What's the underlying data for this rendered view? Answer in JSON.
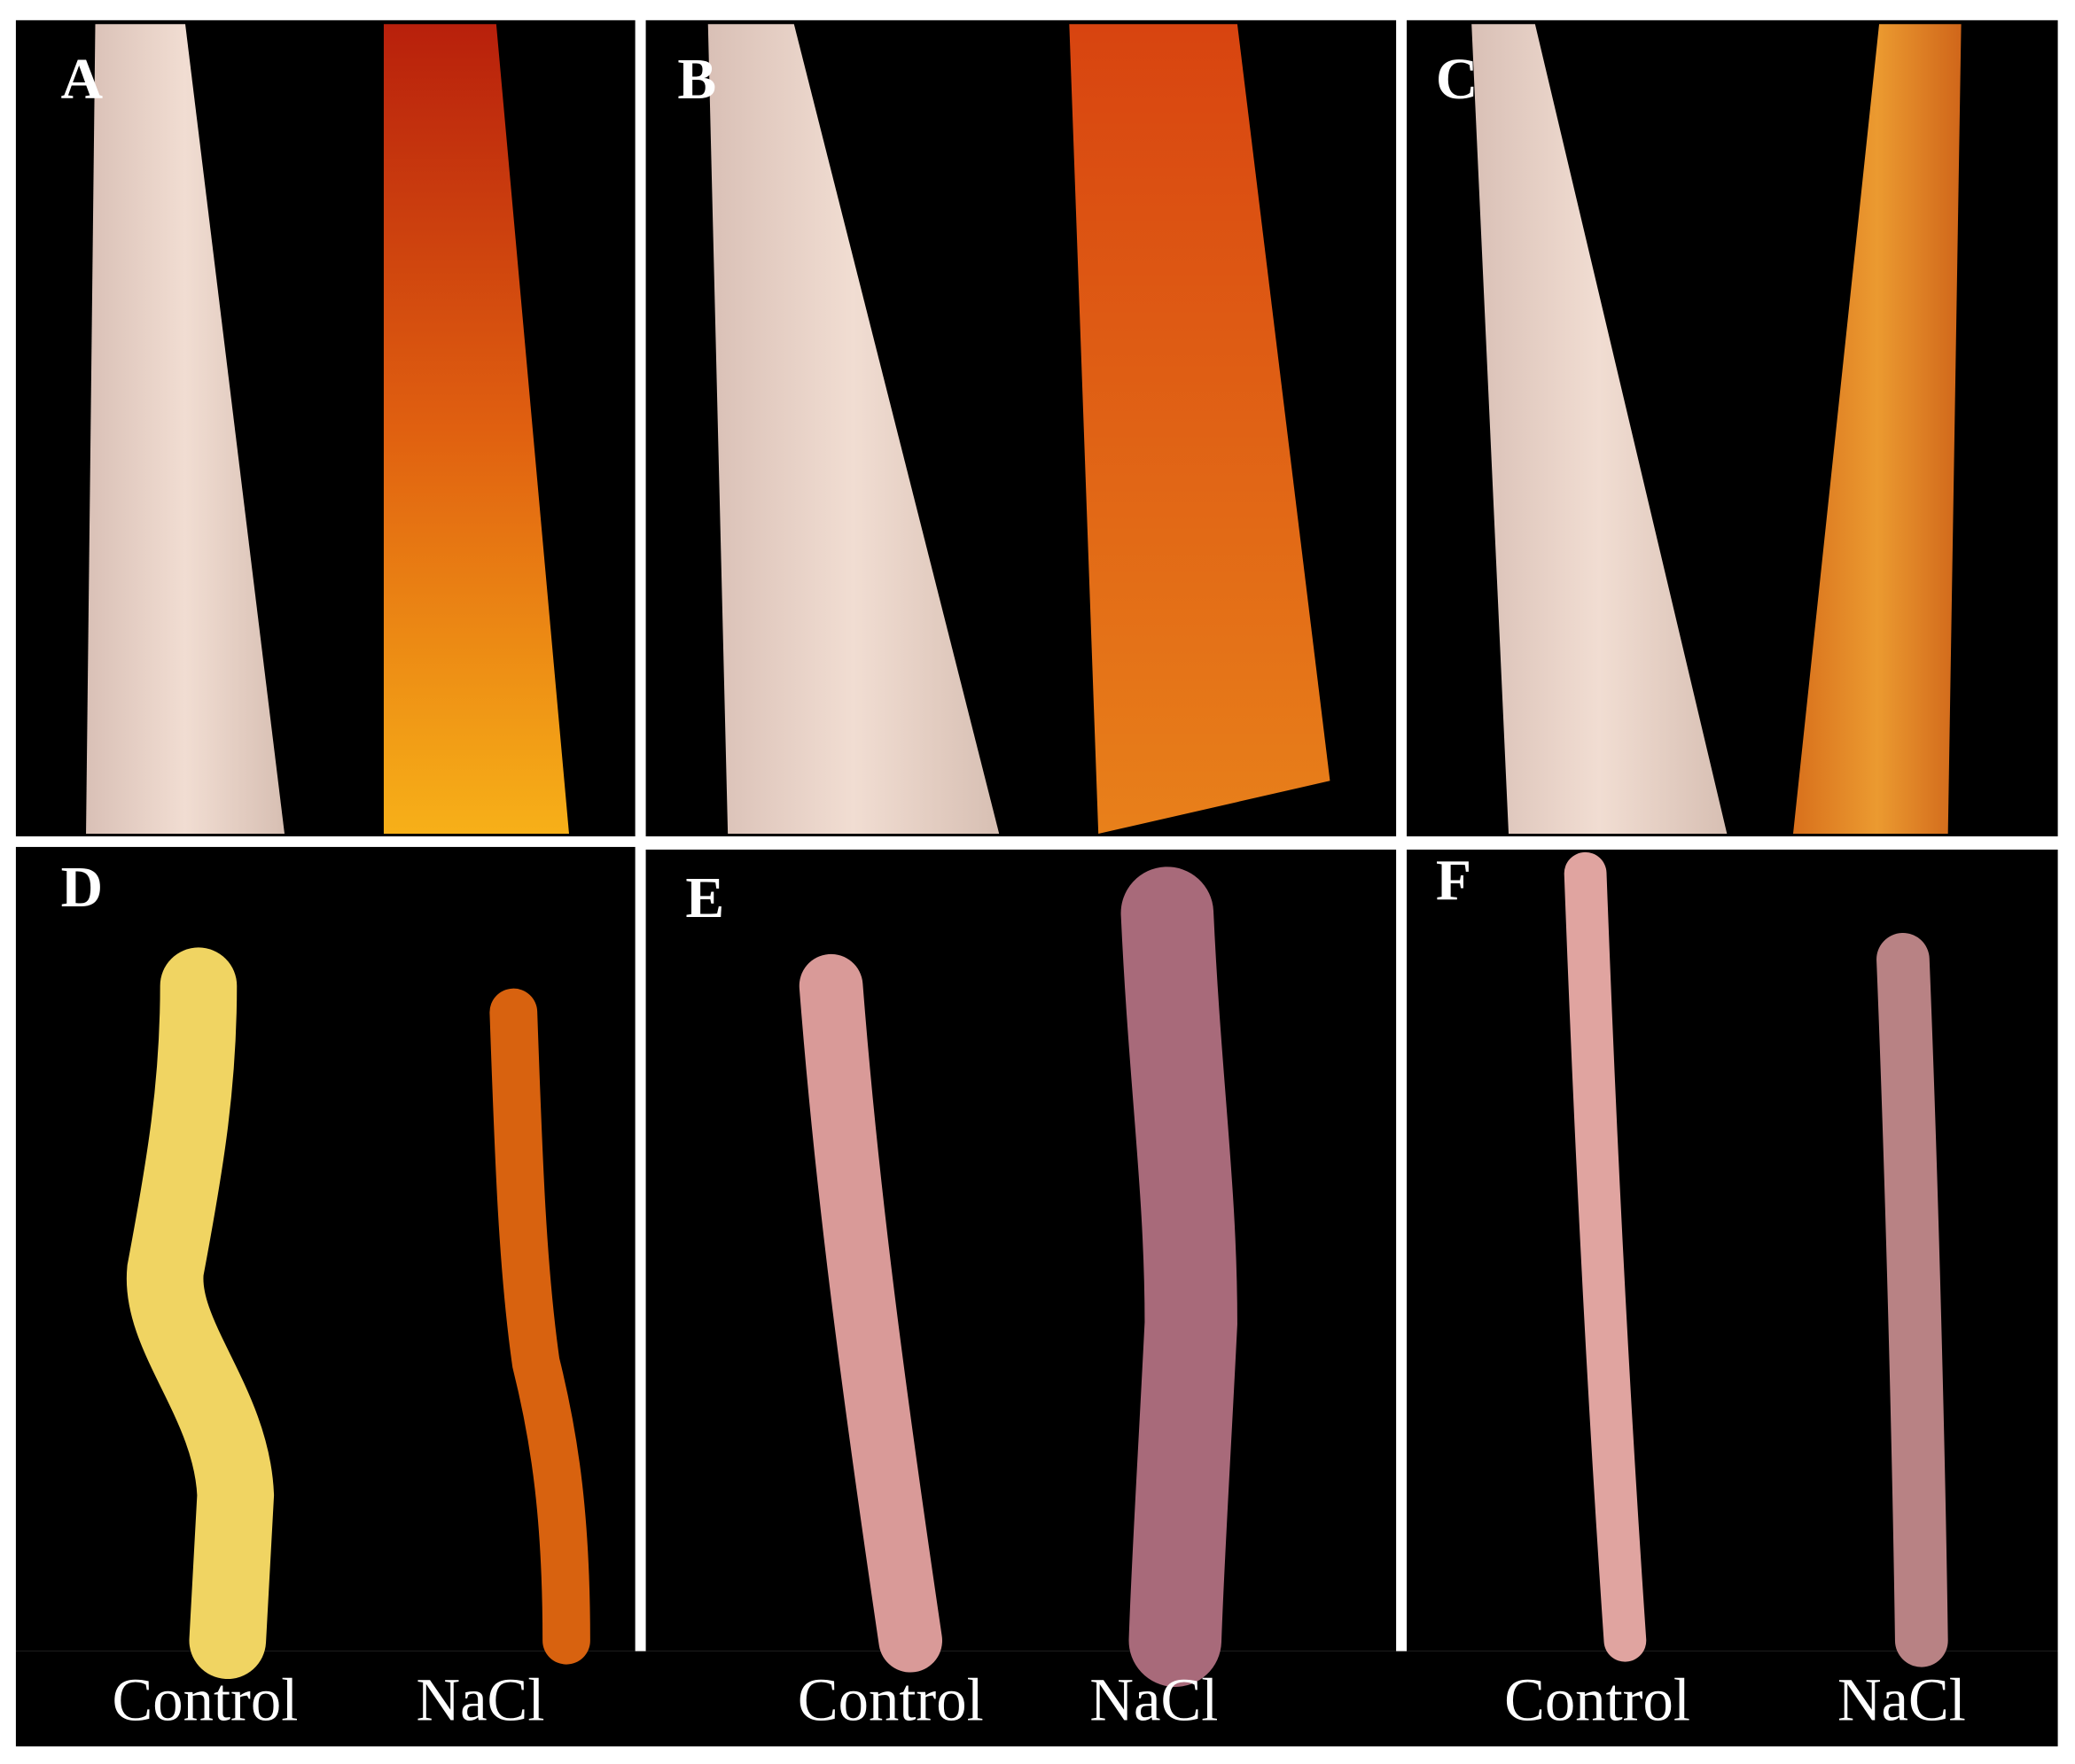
{
  "panels": [
    {
      "label": "A"
    },
    {
      "label": "B"
    },
    {
      "label": "C"
    },
    {
      "label": "D"
    },
    {
      "label": "E"
    },
    {
      "label": "F"
    }
  ],
  "captions": [
    {
      "control": "Control",
      "treatment": "NaCl"
    },
    {
      "control": "Control",
      "treatment": "NaCl"
    },
    {
      "control": "Control",
      "treatment": "NaCl"
    }
  ]
}
